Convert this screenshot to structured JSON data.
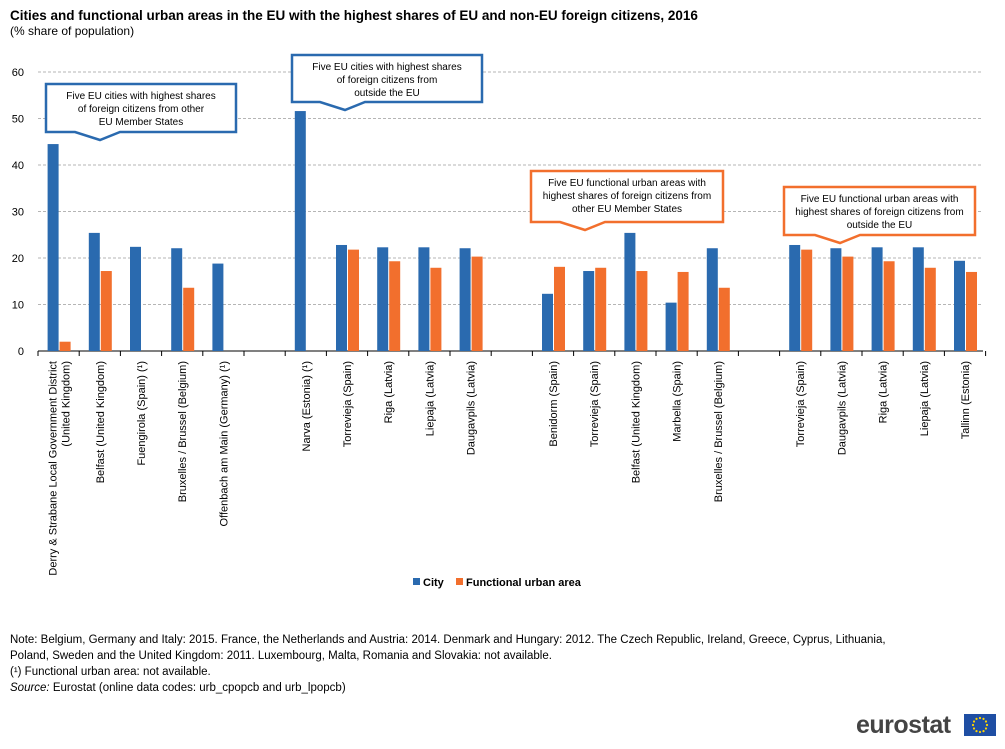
{
  "title": "Cities and functional urban areas in the EU with the highest shares of EU and non-EU foreign citizens, 2016",
  "subtitle": "(% share of population)",
  "chart_data": {
    "type": "bar",
    "ylim": [
      0,
      60
    ],
    "yticks": [
      0,
      10,
      20,
      30,
      40,
      50,
      60
    ],
    "grid": true,
    "legend_position": "bottom",
    "colors": {
      "City": "#2a6aaf",
      "Functional urban area": "#f26f2d"
    },
    "series_names": [
      "City",
      "Functional urban area"
    ],
    "groups": [
      {
        "callout": [
          "Five EU cities with highest  shares",
          "of foreign  citizens  from  other",
          "EU Member States"
        ],
        "callout_color": "#2a6aaf",
        "categories": [
          [
            "Derry & Strabane Local Government District",
            "(United Kingdom)"
          ],
          [
            "Belfast (United Kingdom)"
          ],
          [
            "Fuengirola (Spain) (¹)"
          ],
          [
            "Bruxelles / Brussel (Belgium)"
          ],
          [
            "Offenbach am Main (Germany) (¹)"
          ]
        ],
        "city": [
          44.5,
          25.4,
          22.4,
          22.1,
          18.8
        ],
        "fua": [
          2.0,
          17.2,
          null,
          13.6,
          null
        ]
      },
      {
        "callout": [
          "Five EU cities with highest  shares",
          "of foreign  citizens  from",
          "outside  the  EU"
        ],
        "callout_color": "#2a6aaf",
        "categories": [
          [
            "Narva (Estonia) (¹)"
          ],
          [
            "Torrevieja (Spain)"
          ],
          [
            "Riga (Latvia)"
          ],
          [
            "Liepaja (Latvia)"
          ],
          [
            "Daugavpils (Latvia)"
          ]
        ],
        "city": [
          51.6,
          22.8,
          22.3,
          22.3,
          22.1
        ],
        "fua": [
          null,
          21.8,
          19.3,
          17.9,
          20.3
        ]
      },
      {
        "callout": [
          "Five EU functional  urban areas  with",
          "highest shares of foreign  citizens  from",
          "other  EU Member States"
        ],
        "callout_color": "#f26f2d",
        "categories": [
          [
            "Benidorm (Spain)"
          ],
          [
            "Torrevieja (Spain)"
          ],
          [
            "Belfast (United Kingdom)"
          ],
          [
            "Marbella (Spain)"
          ],
          [
            "Bruxelles / Brussel (Belgium)"
          ]
        ],
        "city": [
          12.3,
          17.2,
          25.4,
          10.4,
          22.1
        ],
        "fua": [
          18.1,
          17.9,
          17.2,
          17.0,
          13.6
        ]
      },
      {
        "callout": [
          "Five EU functional  urban areas  with",
          "highest shares of foreign  citizens  from",
          "outside  the  EU"
        ],
        "callout_color": "#f26f2d",
        "categories": [
          [
            "Torrevieja (Spain)"
          ],
          [
            "Daugavpils (Latvia)"
          ],
          [
            "Riga (Latvia)"
          ],
          [
            "Liepaja (Latvia)"
          ],
          [
            "Tallinn (Estonia)"
          ]
        ],
        "city": [
          22.8,
          22.1,
          22.3,
          22.3,
          19.4
        ],
        "fua": [
          21.8,
          20.3,
          19.3,
          17.9,
          17.0
        ]
      }
    ]
  },
  "notes": {
    "line1": "Note: Belgium, Germany and Italy: 2015. France, the Netherlands and Austria: 2014. Denmark and Hungary: 2012. The Czech Republic, Ireland, Greece, Cyprus, Lithuania,",
    "line2": "Poland, Sweden and the United Kingdom: 2011. Luxembourg, Malta, Romania and Slovakia: not available.",
    "line3": "(¹) Functional urban area: not available.",
    "source_label": "Source:",
    "source_text": " Eurostat (online data codes: urb_cpopcb and urb_lpopcb)"
  },
  "logo": {
    "text": "eurostat"
  }
}
